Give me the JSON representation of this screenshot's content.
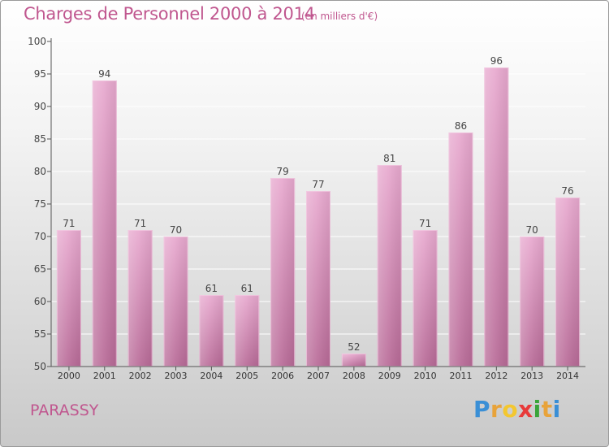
{
  "title": "Charges de Personnel 2000 à 2014",
  "subtitle": "(en milliers d'€)",
  "place": "PARASSY",
  "brand": {
    "letters": [
      "P",
      "r",
      "o",
      "x",
      "i",
      "t",
      "i"
    ],
    "colors": [
      "#3a8fd6",
      "#e8a33a",
      "#f3c730",
      "#e83a3a",
      "#3aa43a",
      "#e8a33a",
      "#3a8fd6"
    ]
  },
  "colors": {
    "title": "#c0578f",
    "bar_top": "#e8a9cf",
    "bar_bottom": "#b86a97",
    "axis": "#555555",
    "grid": "#ffffff"
  },
  "chart_data": {
    "type": "bar",
    "categories": [
      "2000",
      "2001",
      "2002",
      "2003",
      "2004",
      "2005",
      "2006",
      "2007",
      "2008",
      "2009",
      "2010",
      "2011",
      "2012",
      "2013",
      "2014"
    ],
    "values": [
      71,
      94,
      71,
      70,
      61,
      61,
      79,
      77,
      52,
      81,
      71,
      86,
      96,
      70,
      76
    ],
    "data_labels": [
      "71",
      "94",
      "71",
      "70",
      "61",
      "61",
      "79",
      "77",
      "52",
      "81",
      "71",
      "86",
      "96",
      "70",
      "76"
    ],
    "yticks": [
      50,
      55,
      60,
      65,
      70,
      75,
      80,
      85,
      90,
      95,
      100
    ],
    "ylim": [
      50,
      100
    ],
    "grid": true,
    "xlabel": "",
    "ylabel": ""
  }
}
